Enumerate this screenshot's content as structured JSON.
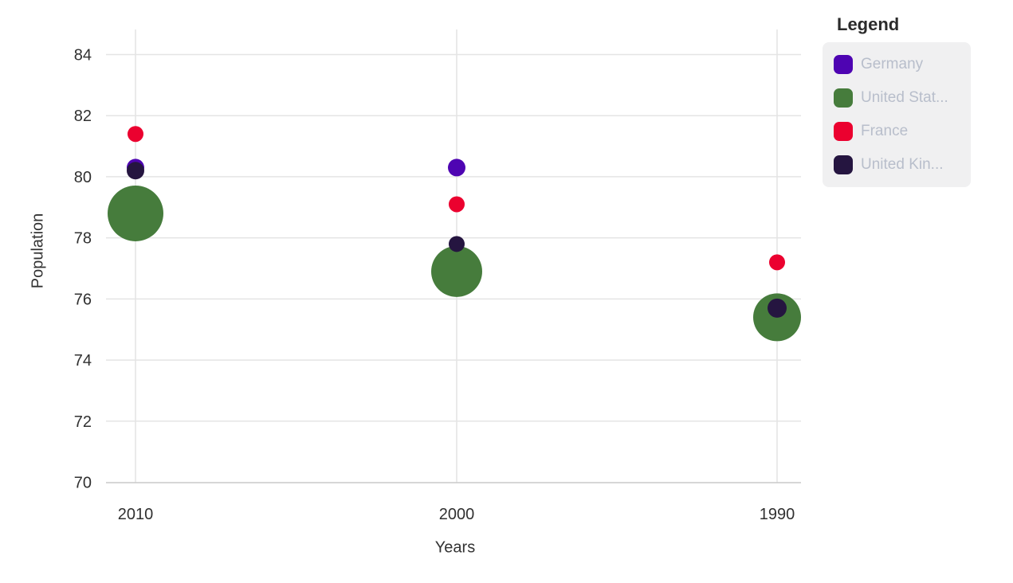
{
  "chart_data": {
    "type": "scatter",
    "subtype": "bubble",
    "title": "",
    "xlabel": "Years",
    "ylabel": "Population",
    "legend_title": "Legend",
    "legend_position": "top-right",
    "grid": true,
    "background": "#ffffff",
    "categories": [
      "2010",
      "2000",
      "1990"
    ],
    "ylim": [
      70,
      84
    ],
    "y_ticks": [
      84,
      82,
      80,
      78,
      76,
      74,
      72,
      70
    ],
    "series": [
      {
        "id": "germany",
        "legend_label": "Germany",
        "color": "#4e04b2",
        "values": [
          80.3,
          80.3,
          null
        ],
        "point_radius_px": [
          11,
          11,
          null
        ]
      },
      {
        "id": "united-states",
        "legend_label": "United Stat...",
        "color": "#467c3c",
        "values": [
          78.8,
          76.9,
          75.4
        ],
        "point_radius_px": [
          35,
          32,
          30
        ]
      },
      {
        "id": "france",
        "legend_label": "France",
        "color": "#eb012f",
        "values": [
          81.4,
          79.1,
          77.2
        ],
        "point_radius_px": [
          10,
          10,
          10
        ]
      },
      {
        "id": "united-kingdom",
        "legend_label": "United Kin...",
        "color": "#251540",
        "values": [
          80.2,
          77.8,
          75.7
        ],
        "point_radius_px": [
          11,
          10,
          12
        ]
      }
    ],
    "colors": {
      "grid": "#e4e4e4",
      "axis_line": "#c9c9c9",
      "tick_label": "#303030",
      "axis_title": "#333333",
      "legend_bg": "#f0f0f1",
      "legend_label": "#b8becb",
      "legend_title": "#2b2b2b"
    }
  }
}
